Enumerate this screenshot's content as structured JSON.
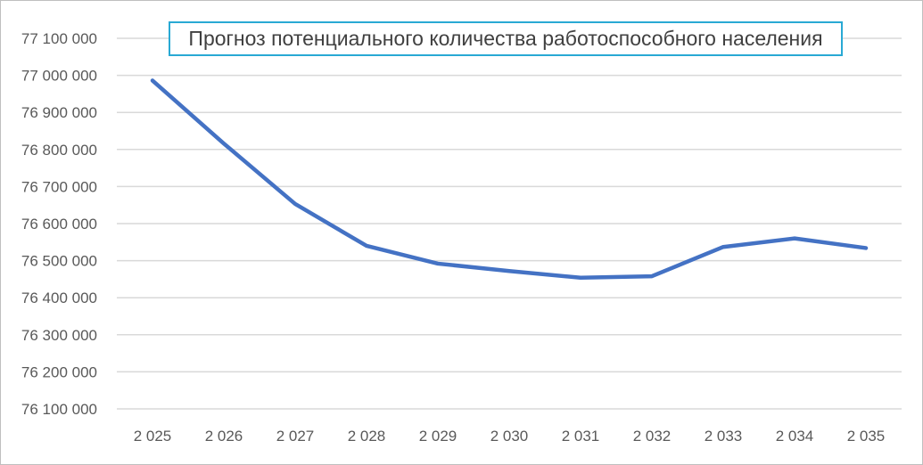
{
  "chart_data": {
    "type": "line",
    "title": "Прогноз потенциального количества работоспособного населения",
    "xlabel": "",
    "ylabel": "",
    "categories": [
      "2 025",
      "2 026",
      "2 027",
      "2 028",
      "2 029",
      "2 030",
      "2 031",
      "2 032",
      "2 033",
      "2 034",
      "2 035"
    ],
    "series": [
      {
        "values": [
          76986000,
          76816000,
          76653000,
          76540000,
          76492000,
          76472000,
          76454000,
          76458000,
          76537000,
          76560000,
          76534000
        ],
        "color": "#4472c4"
      }
    ],
    "ylim": [
      76100000,
      77100000
    ],
    "yticks": [
      "76 100 000",
      "76 200 000",
      "76 300 000",
      "76 400 000",
      "76 500 000",
      "76 600 000",
      "76 700 000",
      "76 800 000",
      "76 900 000",
      "77 000 000",
      "77 100 000"
    ],
    "grid": true,
    "legend": "none",
    "gridline_color": "#d9d9d9",
    "title_border_color": "#29a9d4"
  }
}
